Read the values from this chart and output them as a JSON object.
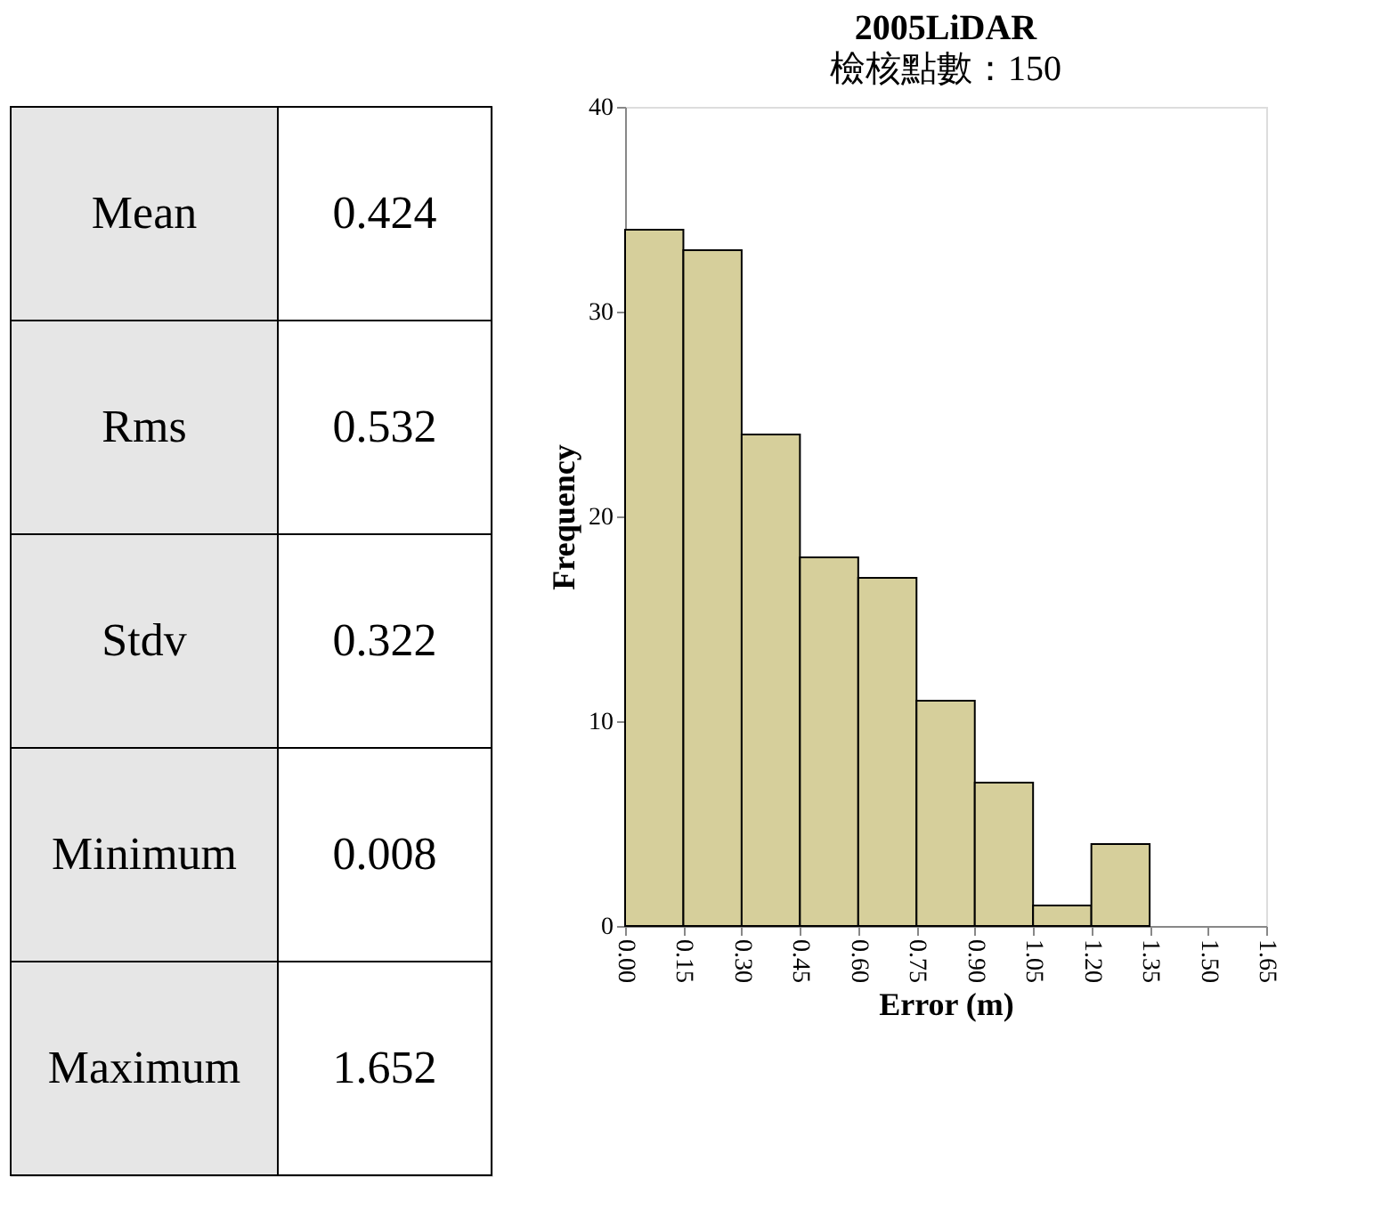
{
  "chart_data": [
    {
      "type": "other",
      "categories": [
        "Mean",
        "Rms",
        "Stdv",
        "Minimum",
        "Maximum"
      ],
      "values": [
        0.424,
        0.532,
        0.322,
        0.008,
        1.652
      ],
      "data_labels": true
    },
    {
      "type": "histogram",
      "title": "2005LiDAR",
      "subtitle": "檢核點數：150",
      "xlabel": "Error (m)",
      "ylabel": "Frequency",
      "bins": [
        0,
        0.15,
        0.3,
        0.45,
        0.6,
        0.75,
        0.9,
        1.05,
        1.2,
        1.35,
        1.5,
        1.65
      ],
      "values": [
        34,
        33,
        24,
        18,
        17,
        11,
        7,
        1,
        4,
        0,
        0
      ],
      "color": "#d6cf9b",
      "xlim": [
        0,
        1.65
      ],
      "ylim": [
        0,
        40
      ],
      "xticks": [
        {
          "value": 0,
          "label": "0.00"
        },
        {
          "value": 0.15,
          "label": "0.15"
        },
        {
          "value": 0.3,
          "label": "0.30"
        },
        {
          "value": 0.45,
          "label": "0.45"
        },
        {
          "value": 0.6,
          "label": "0.60"
        },
        {
          "value": 0.75,
          "label": "0.75"
        },
        {
          "value": 0.9,
          "label": "0.90"
        },
        {
          "value": 1.05,
          "label": "1.05"
        },
        {
          "value": 1.2,
          "label": "1.20"
        },
        {
          "value": 1.35,
          "label": "1.35"
        },
        {
          "value": 1.5,
          "label": "1.50"
        },
        {
          "value": 1.65,
          "label": "1.65"
        }
      ],
      "yticks": [
        0,
        10,
        20,
        30,
        40
      ],
      "grid": false
    }
  ]
}
